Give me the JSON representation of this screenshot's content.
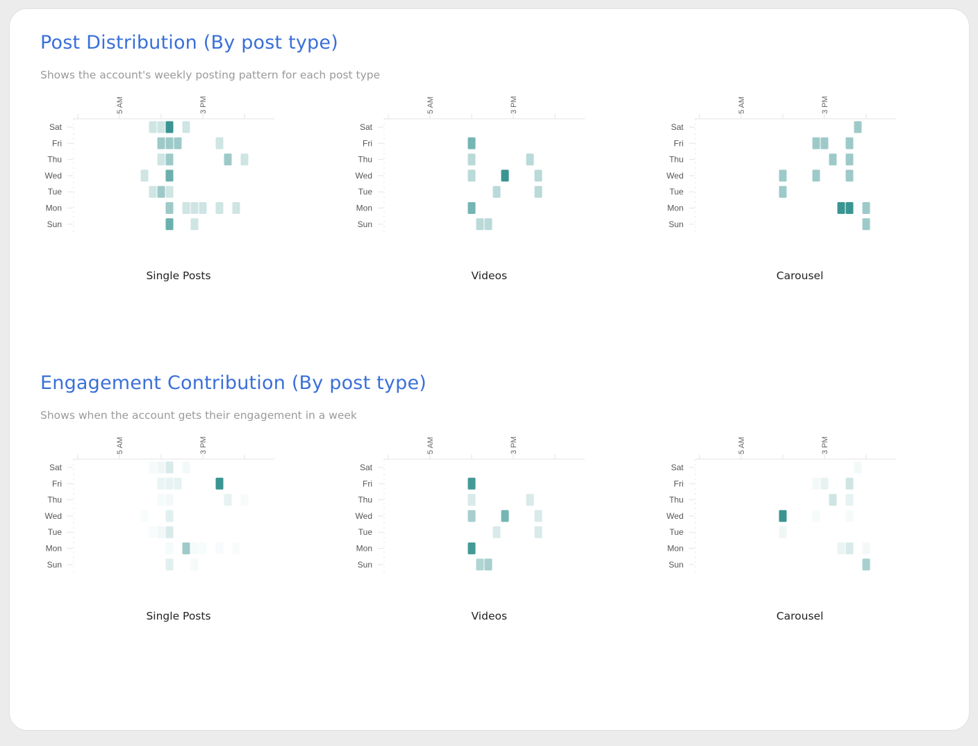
{
  "sections": [
    {
      "title": "Post Distribution (By post type)",
      "subtitle": "Shows the account's weekly posting pattern for each post type"
    },
    {
      "title": "Engagement Contribution (By post type)",
      "subtitle": "Shows when the account gets their engagement in a week"
    }
  ],
  "colors": {
    "title": "#3a6fd8",
    "subtitle": "#9a9a9a",
    "cell_max": "#3a9592",
    "cell_min": "#ffffff",
    "axis": "#e3e3e3"
  },
  "chart_data": [
    {
      "type": "heatmap",
      "section": 0,
      "title": "Single Posts",
      "y_categories": [
        "Sat",
        "Fri",
        "Thu",
        "Wed",
        "Tue",
        "Mon",
        "Sun"
      ],
      "x_range": [
        0,
        23
      ],
      "x_ticks": [
        {
          "hour": 0,
          "label": ""
        },
        {
          "hour": 5,
          "label": "5 AM"
        },
        {
          "hour": 10,
          "label": ""
        },
        {
          "hour": 15,
          "label": "3 PM"
        },
        {
          "hour": 20,
          "label": ""
        }
      ],
      "value_range": [
        0,
        1
      ],
      "cells": [
        [
          "Sat",
          9,
          0.25
        ],
        [
          "Sat",
          10,
          0.25
        ],
        [
          "Sat",
          11,
          1.0
        ],
        [
          "Sat",
          13,
          0.25
        ],
        [
          "Fri",
          10,
          0.5
        ],
        [
          "Fri",
          11,
          0.5
        ],
        [
          "Fri",
          12,
          0.5
        ],
        [
          "Fri",
          17,
          0.25
        ],
        [
          "Thu",
          10,
          0.25
        ],
        [
          "Thu",
          11,
          0.5
        ],
        [
          "Thu",
          18,
          0.5
        ],
        [
          "Thu",
          20,
          0.25
        ],
        [
          "Wed",
          8,
          0.25
        ],
        [
          "Wed",
          11,
          0.75
        ],
        [
          "Tue",
          9,
          0.25
        ],
        [
          "Tue",
          10,
          0.5
        ],
        [
          "Tue",
          11,
          0.25
        ],
        [
          "Mon",
          11,
          0.5
        ],
        [
          "Mon",
          13,
          0.25
        ],
        [
          "Mon",
          14,
          0.25
        ],
        [
          "Mon",
          15,
          0.25
        ],
        [
          "Mon",
          17,
          0.25
        ],
        [
          "Mon",
          19,
          0.25
        ],
        [
          "Sun",
          11,
          0.75
        ],
        [
          "Sun",
          14,
          0.25
        ]
      ]
    },
    {
      "type": "heatmap",
      "section": 0,
      "title": "Videos",
      "y_categories": [
        "Sat",
        "Fri",
        "Thu",
        "Wed",
        "Tue",
        "Mon",
        "Sun"
      ],
      "x_range": [
        0,
        23
      ],
      "x_ticks": [
        {
          "hour": 0,
          "label": ""
        },
        {
          "hour": 5,
          "label": "5 AM"
        },
        {
          "hour": 10,
          "label": ""
        },
        {
          "hour": 15,
          "label": "3 PM"
        },
        {
          "hour": 20,
          "label": ""
        }
      ],
      "value_range": [
        0,
        1
      ],
      "cells": [
        [
          "Fri",
          10,
          0.7
        ],
        [
          "Thu",
          10,
          0.35
        ],
        [
          "Thu",
          17,
          0.35
        ],
        [
          "Wed",
          10,
          0.35
        ],
        [
          "Wed",
          14,
          1.0
        ],
        [
          "Wed",
          18,
          0.35
        ],
        [
          "Tue",
          13,
          0.35
        ],
        [
          "Tue",
          18,
          0.35
        ],
        [
          "Mon",
          10,
          0.7
        ],
        [
          "Sun",
          11,
          0.35
        ],
        [
          "Sun",
          12,
          0.35
        ]
      ]
    },
    {
      "type": "heatmap",
      "section": 0,
      "title": "Carousel",
      "y_categories": [
        "Sat",
        "Fri",
        "Thu",
        "Wed",
        "Tue",
        "Mon",
        "Sun"
      ],
      "x_range": [
        0,
        23
      ],
      "x_ticks": [
        {
          "hour": 0,
          "label": ""
        },
        {
          "hour": 5,
          "label": "5 AM"
        },
        {
          "hour": 10,
          "label": ""
        },
        {
          "hour": 15,
          "label": "3 PM"
        },
        {
          "hour": 20,
          "label": ""
        }
      ],
      "value_range": [
        0,
        1
      ],
      "cells": [
        [
          "Sat",
          19,
          0.5
        ],
        [
          "Fri",
          14,
          0.5
        ],
        [
          "Fri",
          15,
          0.5
        ],
        [
          "Fri",
          18,
          0.5
        ],
        [
          "Thu",
          16,
          0.5
        ],
        [
          "Thu",
          18,
          0.5
        ],
        [
          "Wed",
          10,
          0.5
        ],
        [
          "Wed",
          14,
          0.5
        ],
        [
          "Wed",
          18,
          0.5
        ],
        [
          "Tue",
          10,
          0.5
        ],
        [
          "Mon",
          17,
          1.0
        ],
        [
          "Mon",
          18,
          1.0
        ],
        [
          "Mon",
          20,
          0.5
        ],
        [
          "Sun",
          20,
          0.5
        ]
      ]
    },
    {
      "type": "heatmap",
      "section": 1,
      "title": "Single Posts",
      "y_categories": [
        "Sat",
        "Fri",
        "Thu",
        "Wed",
        "Tue",
        "Mon",
        "Sun"
      ],
      "x_range": [
        0,
        23
      ],
      "x_ticks": [
        {
          "hour": 0,
          "label": ""
        },
        {
          "hour": 5,
          "label": "5 AM"
        },
        {
          "hour": 10,
          "label": ""
        },
        {
          "hour": 15,
          "label": "3 PM"
        },
        {
          "hour": 20,
          "label": ""
        }
      ],
      "value_range": [
        0,
        1
      ],
      "cells": [
        [
          "Sat",
          9,
          0.05
        ],
        [
          "Sat",
          10,
          0.08
        ],
        [
          "Sat",
          11,
          0.2
        ],
        [
          "Sat",
          13,
          0.06
        ],
        [
          "Fri",
          10,
          0.1
        ],
        [
          "Fri",
          11,
          0.12
        ],
        [
          "Fri",
          12,
          0.12
        ],
        [
          "Fri",
          17,
          1.0
        ],
        [
          "Thu",
          10,
          0.05
        ],
        [
          "Thu",
          11,
          0.06
        ],
        [
          "Thu",
          18,
          0.12
        ],
        [
          "Thu",
          20,
          0.04
        ],
        [
          "Wed",
          8,
          0.03
        ],
        [
          "Wed",
          11,
          0.15
        ],
        [
          "Tue",
          9,
          0.04
        ],
        [
          "Tue",
          10,
          0.07
        ],
        [
          "Tue",
          11,
          0.2
        ],
        [
          "Mon",
          11,
          0.05
        ],
        [
          "Mon",
          13,
          0.5
        ],
        [
          "Mon",
          14,
          0.05
        ],
        [
          "Mon",
          15,
          0.04
        ],
        [
          "Mon",
          17,
          0.04
        ],
        [
          "Mon",
          19,
          0.03
        ],
        [
          "Sun",
          11,
          0.15
        ],
        [
          "Sun",
          14,
          0.05
        ]
      ]
    },
    {
      "type": "heatmap",
      "section": 1,
      "title": "Videos",
      "y_categories": [
        "Sat",
        "Fri",
        "Thu",
        "Wed",
        "Tue",
        "Mon",
        "Sun"
      ],
      "x_range": [
        0,
        23
      ],
      "x_ticks": [
        {
          "hour": 0,
          "label": ""
        },
        {
          "hour": 5,
          "label": "5 AM"
        },
        {
          "hour": 10,
          "label": ""
        },
        {
          "hour": 15,
          "label": "3 PM"
        },
        {
          "hour": 20,
          "label": ""
        }
      ],
      "value_range": [
        0,
        1
      ],
      "cells": [
        [
          "Fri",
          10,
          0.95
        ],
        [
          "Thu",
          10,
          0.2
        ],
        [
          "Thu",
          17,
          0.2
        ],
        [
          "Wed",
          10,
          0.45
        ],
        [
          "Wed",
          14,
          0.7
        ],
        [
          "Wed",
          18,
          0.2
        ],
        [
          "Tue",
          13,
          0.2
        ],
        [
          "Tue",
          18,
          0.2
        ],
        [
          "Mon",
          10,
          0.95
        ],
        [
          "Sun",
          11,
          0.4
        ],
        [
          "Sun",
          12,
          0.45
        ]
      ]
    },
    {
      "type": "heatmap",
      "section": 1,
      "title": "Carousel",
      "y_categories": [
        "Sat",
        "Fri",
        "Thu",
        "Wed",
        "Tue",
        "Mon",
        "Sun"
      ],
      "x_range": [
        0,
        23
      ],
      "x_ticks": [
        {
          "hour": 0,
          "label": ""
        },
        {
          "hour": 5,
          "label": "5 AM"
        },
        {
          "hour": 10,
          "label": ""
        },
        {
          "hour": 15,
          "label": "3 PM"
        },
        {
          "hour": 20,
          "label": ""
        }
      ],
      "value_range": [
        0,
        1
      ],
      "cells": [
        [
          "Sat",
          19,
          0.06
        ],
        [
          "Fri",
          14,
          0.06
        ],
        [
          "Fri",
          15,
          0.12
        ],
        [
          "Fri",
          18,
          0.25
        ],
        [
          "Thu",
          16,
          0.25
        ],
        [
          "Thu",
          18,
          0.12
        ],
        [
          "Wed",
          10,
          1.0
        ],
        [
          "Wed",
          14,
          0.05
        ],
        [
          "Wed",
          18,
          0.05
        ],
        [
          "Tue",
          10,
          0.08
        ],
        [
          "Mon",
          17,
          0.1
        ],
        [
          "Mon",
          18,
          0.2
        ],
        [
          "Mon",
          20,
          0.06
        ],
        [
          "Sun",
          20,
          0.45
        ]
      ]
    }
  ]
}
